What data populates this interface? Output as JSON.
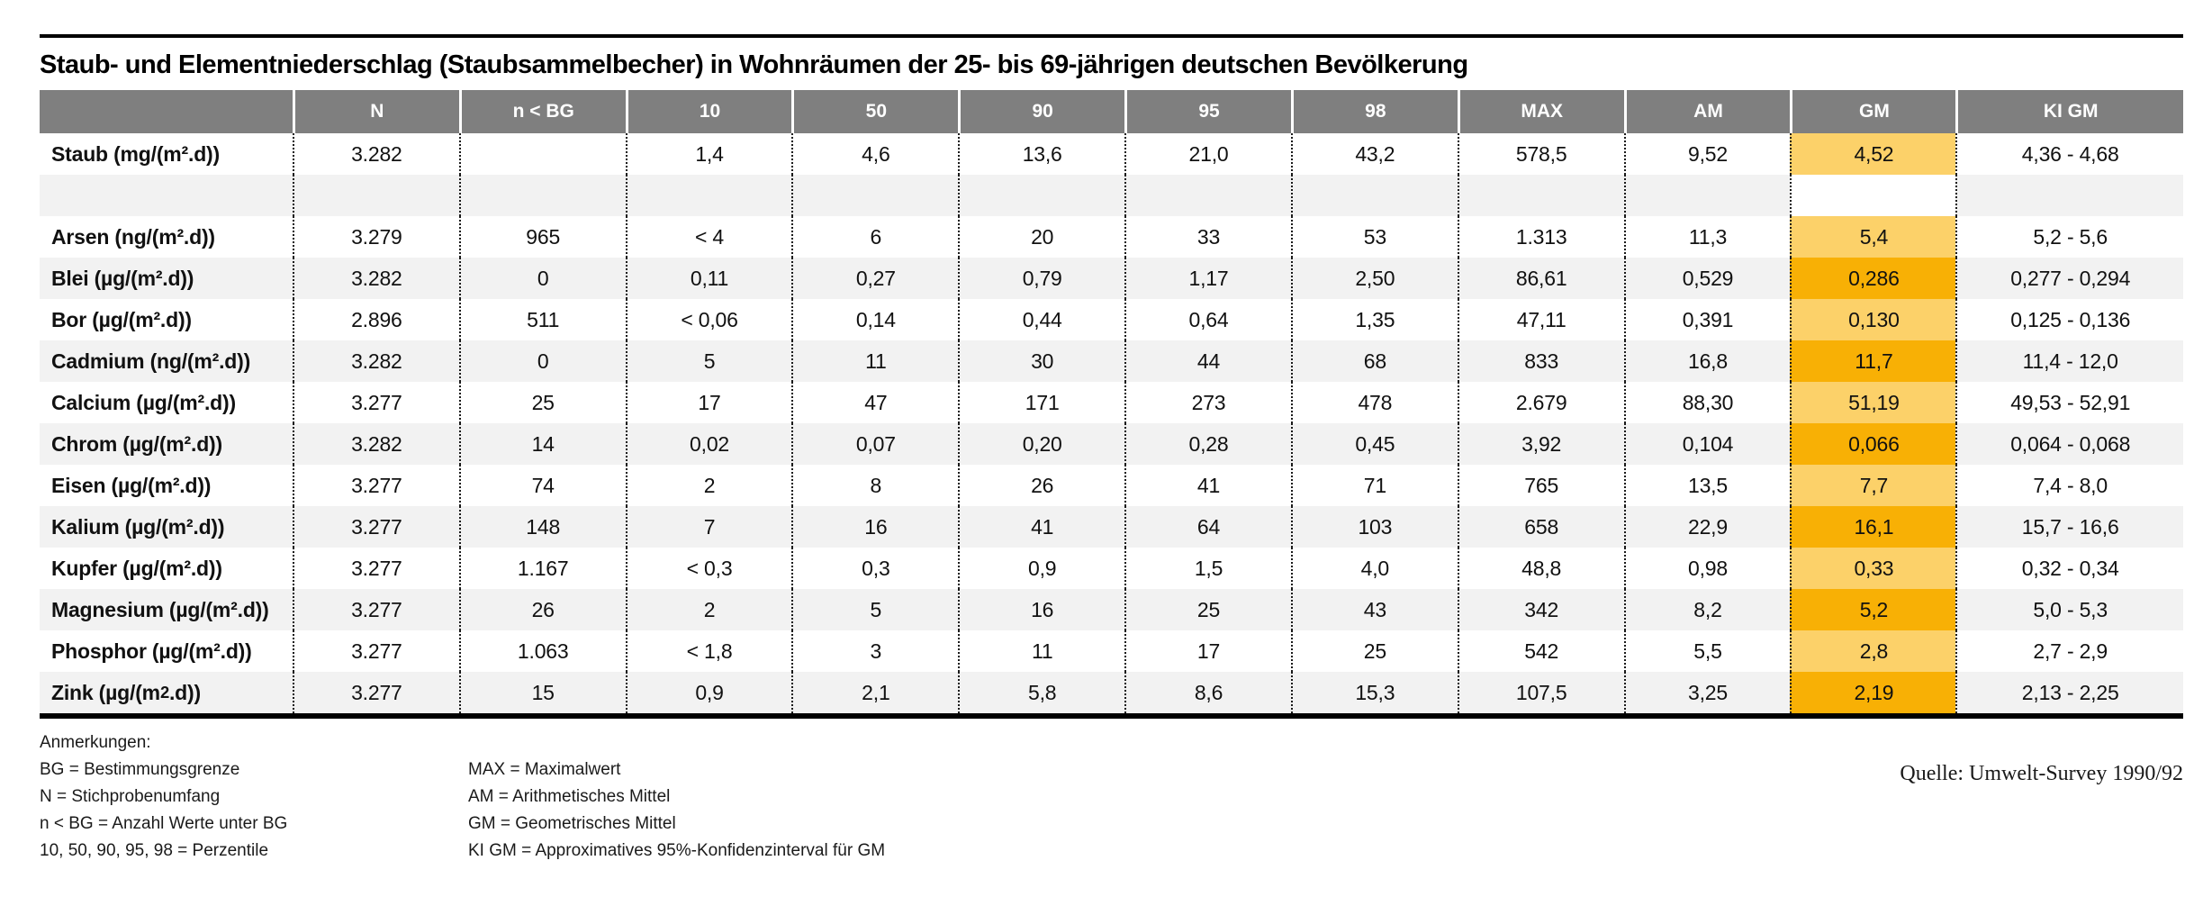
{
  "title": "Staub- und Elementniederschlag (Staubsammelbecher) in Wohnräumen der 25- bis 69-jährigen deutschen Bevölkerung",
  "source": "Quelle: Umwelt-Survey 1990/92",
  "colors": {
    "header_background": "#7f7f7f",
    "header_text": "#ffffff",
    "row_alternate": "#f2f2f2",
    "gm_highlight_light": "#fcd169",
    "gm_highlight_dark": "#f8b005",
    "rule_black": "#000000"
  },
  "table": {
    "columns": [
      {
        "key": "element",
        "label": ""
      },
      {
        "key": "n",
        "label": "N"
      },
      {
        "key": "n_lt_bg",
        "label": "n < BG"
      },
      {
        "key": "p10",
        "label": "10"
      },
      {
        "key": "p50",
        "label": "50"
      },
      {
        "key": "p90",
        "label": "90"
      },
      {
        "key": "p95",
        "label": "95"
      },
      {
        "key": "p98",
        "label": "98"
      },
      {
        "key": "max",
        "label": "MAX"
      },
      {
        "key": "am",
        "label": "AM"
      },
      {
        "key": "gm",
        "label": "GM"
      },
      {
        "key": "ki_gm",
        "label": "KI GM"
      }
    ],
    "rows": [
      {
        "label": "Staub (mg/(m².d))",
        "shade": "white",
        "values": [
          "3.282",
          "",
          "1,4",
          "4,6",
          "13,6",
          "21,0",
          "43,2",
          "578,5",
          "9,52",
          "4,52",
          "4,36 - 4,68"
        ]
      },
      {
        "spacer": true,
        "shade": "gray",
        "values": [
          "",
          "",
          "",
          "",
          "",
          "",
          "",
          "",
          "",
          "",
          ""
        ]
      },
      {
        "label": "Arsen (ng/(m².d))",
        "shade": "white",
        "values": [
          "3.279",
          "965",
          "< 4",
          "6",
          "20",
          "33",
          "53",
          "1.313",
          "11,3",
          "5,4",
          "5,2 - 5,6"
        ]
      },
      {
        "label": "Blei (µg/(m².d))",
        "shade": "gray",
        "values": [
          "3.282",
          "0",
          "0,11",
          "0,27",
          "0,79",
          "1,17",
          "2,50",
          "86,61",
          "0,529",
          "0,286",
          "0,277 - 0,294"
        ]
      },
      {
        "label": "Bor (µg/(m².d))",
        "shade": "white",
        "values": [
          "2.896",
          "511",
          "< 0,06",
          "0,14",
          "0,44",
          "0,64",
          "1,35",
          "47,11",
          "0,391",
          "0,130",
          "0,125 - 0,136"
        ]
      },
      {
        "label": "Cadmium (ng/(m².d))",
        "shade": "gray",
        "values": [
          "3.282",
          "0",
          "5",
          "11",
          "30",
          "44",
          "68",
          "833",
          "16,8",
          "11,7",
          "11,4 - 12,0"
        ]
      },
      {
        "label": "Calcium (µg/(m².d))",
        "shade": "white",
        "values": [
          "3.277",
          "25",
          "17",
          "47",
          "171",
          "273",
          "478",
          "2.679",
          "88,30",
          "51,19",
          "49,53 - 52,91"
        ]
      },
      {
        "label": "Chrom (µg/(m².d))",
        "shade": "gray",
        "values": [
          "3.282",
          "14",
          "0,02",
          "0,07",
          "0,20",
          "0,28",
          "0,45",
          "3,92",
          "0,104",
          "0,066",
          "0,064 - 0,068"
        ]
      },
      {
        "label": "Eisen (µg/(m².d))",
        "shade": "white",
        "values": [
          "3.277",
          "74",
          "2",
          "8",
          "26",
          "41",
          "71",
          "765",
          "13,5",
          "7,7",
          "7,4 - 8,0"
        ]
      },
      {
        "label": "Kalium (µg/(m².d))",
        "shade": "gray",
        "values": [
          "3.277",
          "148",
          "7",
          "16",
          "41",
          "64",
          "103",
          "658",
          "22,9",
          "16,1",
          "15,7 - 16,6"
        ]
      },
      {
        "label": "Kupfer (µg/(m².d))",
        "shade": "white",
        "values": [
          "3.277",
          "1.167",
          "< 0,3",
          "0,3",
          "0,9",
          "1,5",
          "4,0",
          "48,8",
          "0,98",
          "0,33",
          "0,32 - 0,34"
        ]
      },
      {
        "label": "Magnesium (µg/(m².d))",
        "shade": "gray",
        "values": [
          "3.277",
          "26",
          "2",
          "5",
          "16",
          "25",
          "43",
          "342",
          "8,2",
          "5,2",
          "5,0 - 5,3"
        ]
      },
      {
        "label": "Phosphor (µg/(m².d))",
        "shade": "white",
        "values": [
          "3.277",
          "1.063",
          "< 1,8",
          "3",
          "11",
          "17",
          "25",
          "542",
          "5,5",
          "2,8",
          "2,7 - 2,9"
        ]
      },
      {
        "label": "Zink (µg/(m^2.d))",
        "shade": "gray",
        "values": [
          "3.277",
          "15",
          "0,9",
          "2,1",
          "5,8",
          "8,6",
          "15,3",
          "107,5",
          "3,25",
          "2,19",
          "2,13 - 2,25"
        ]
      }
    ]
  },
  "notes": {
    "heading": "Anmerkungen:",
    "left": [
      "BG = Bestimmungsgrenze",
      "N = Stichprobenumfang",
      "n < BG = Anzahl Werte unter BG",
      "10, 50, 90, 95, 98 = Perzentile"
    ],
    "right": [
      "MAX = Maximalwert",
      "AM = Arithmetisches Mittel",
      "GM = Geometrisches Mittel",
      "KI GM = Approximatives 95%-Konfidenzinterval für GM"
    ]
  }
}
